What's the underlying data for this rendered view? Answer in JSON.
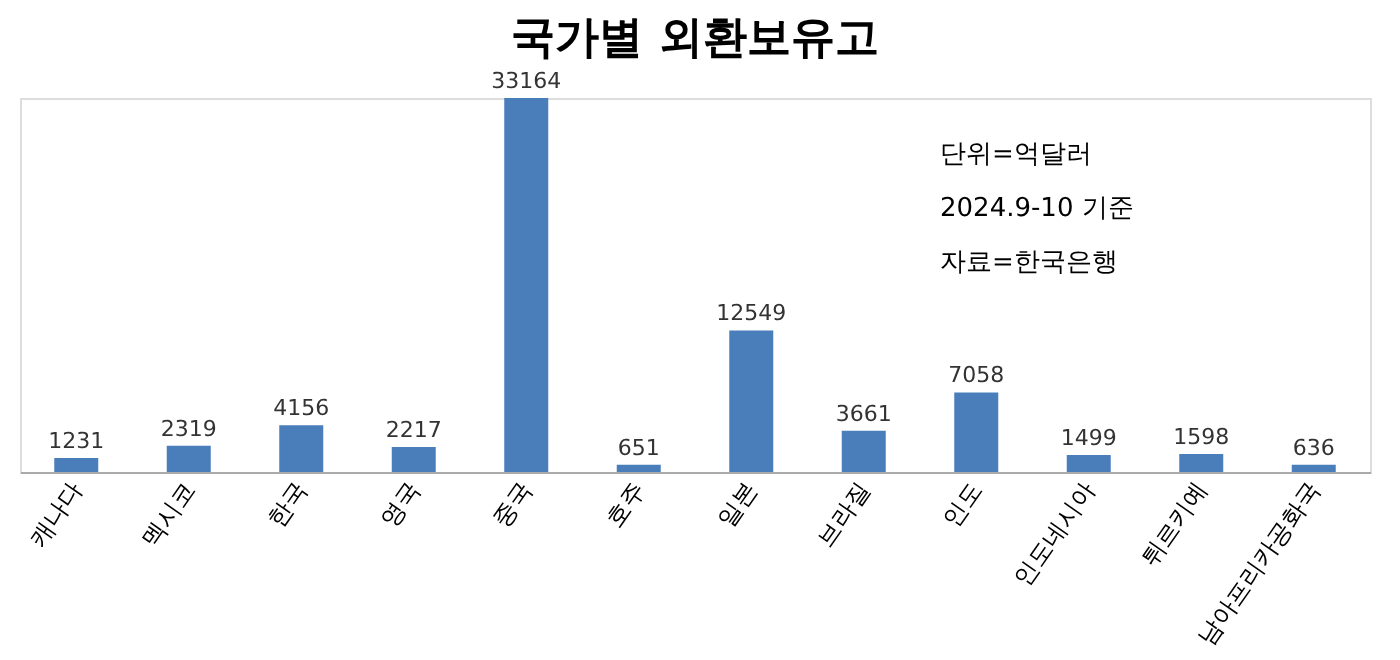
{
  "chart_data": {
    "type": "bar",
    "title": "국가별 외환보유고",
    "categories": [
      "캐나다",
      "멕시코",
      "한국",
      "영국",
      "중국",
      "호주",
      "일본",
      "브라질",
      "인도",
      "인도네시아",
      "튀르키예",
      "남아프리카공화국"
    ],
    "values": [
      1231,
      2319,
      4156,
      2217,
      33164,
      651,
      12549,
      3661,
      7058,
      1499,
      1598,
      636
    ],
    "color": "#4a7ebb",
    "data_labels": true,
    "annotations": [
      "단위=억달러",
      "2024.9-10 기준",
      "자료=한국은행"
    ]
  }
}
